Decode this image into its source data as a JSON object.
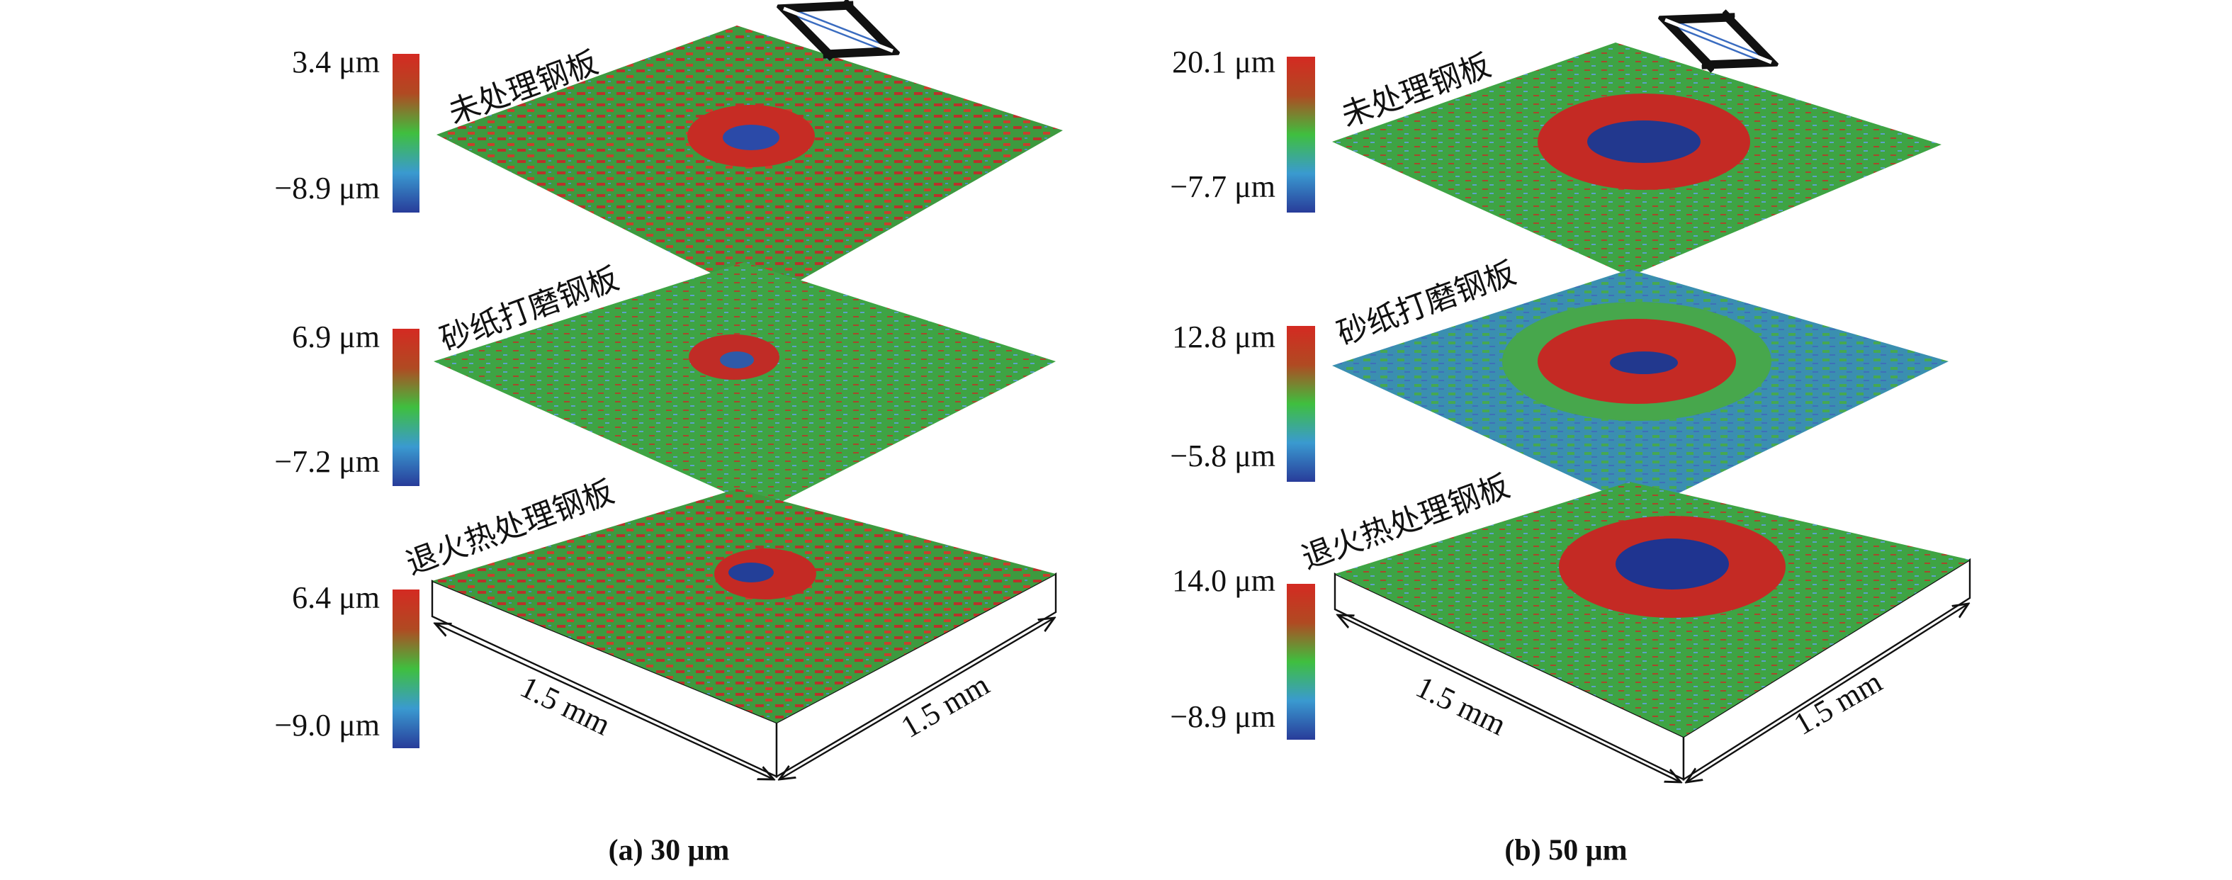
{
  "panels": [
    {
      "caption": "(a) 30 μm",
      "layers": [
        {
          "label": "未处理钢板",
          "max": "3.4 μm",
          "min": "−8.9 μm"
        },
        {
          "label": "砂纸打磨钢板",
          "max": "6.9 μm",
          "min": "−7.2 μm"
        },
        {
          "label": "退火热处理钢板",
          "max": "6.4 μm",
          "min": "−9.0 μm"
        }
      ],
      "width_label": "1.5 mm",
      "depth_label": "1.5 mm"
    },
    {
      "caption": "(b) 50 μm",
      "layers": [
        {
          "label": "未处理钢板",
          "max": "20.1 μm",
          "min": "−7.7 μm"
        },
        {
          "label": "砂纸打磨钢板",
          "max": "12.8 μm",
          "min": "−5.8 μm"
        },
        {
          "label": "退火热处理钢板",
          "max": "14.0 μm",
          "min": "−8.9 μm"
        }
      ],
      "width_label": "1.5 mm",
      "depth_label": "1.5 mm"
    }
  ]
}
